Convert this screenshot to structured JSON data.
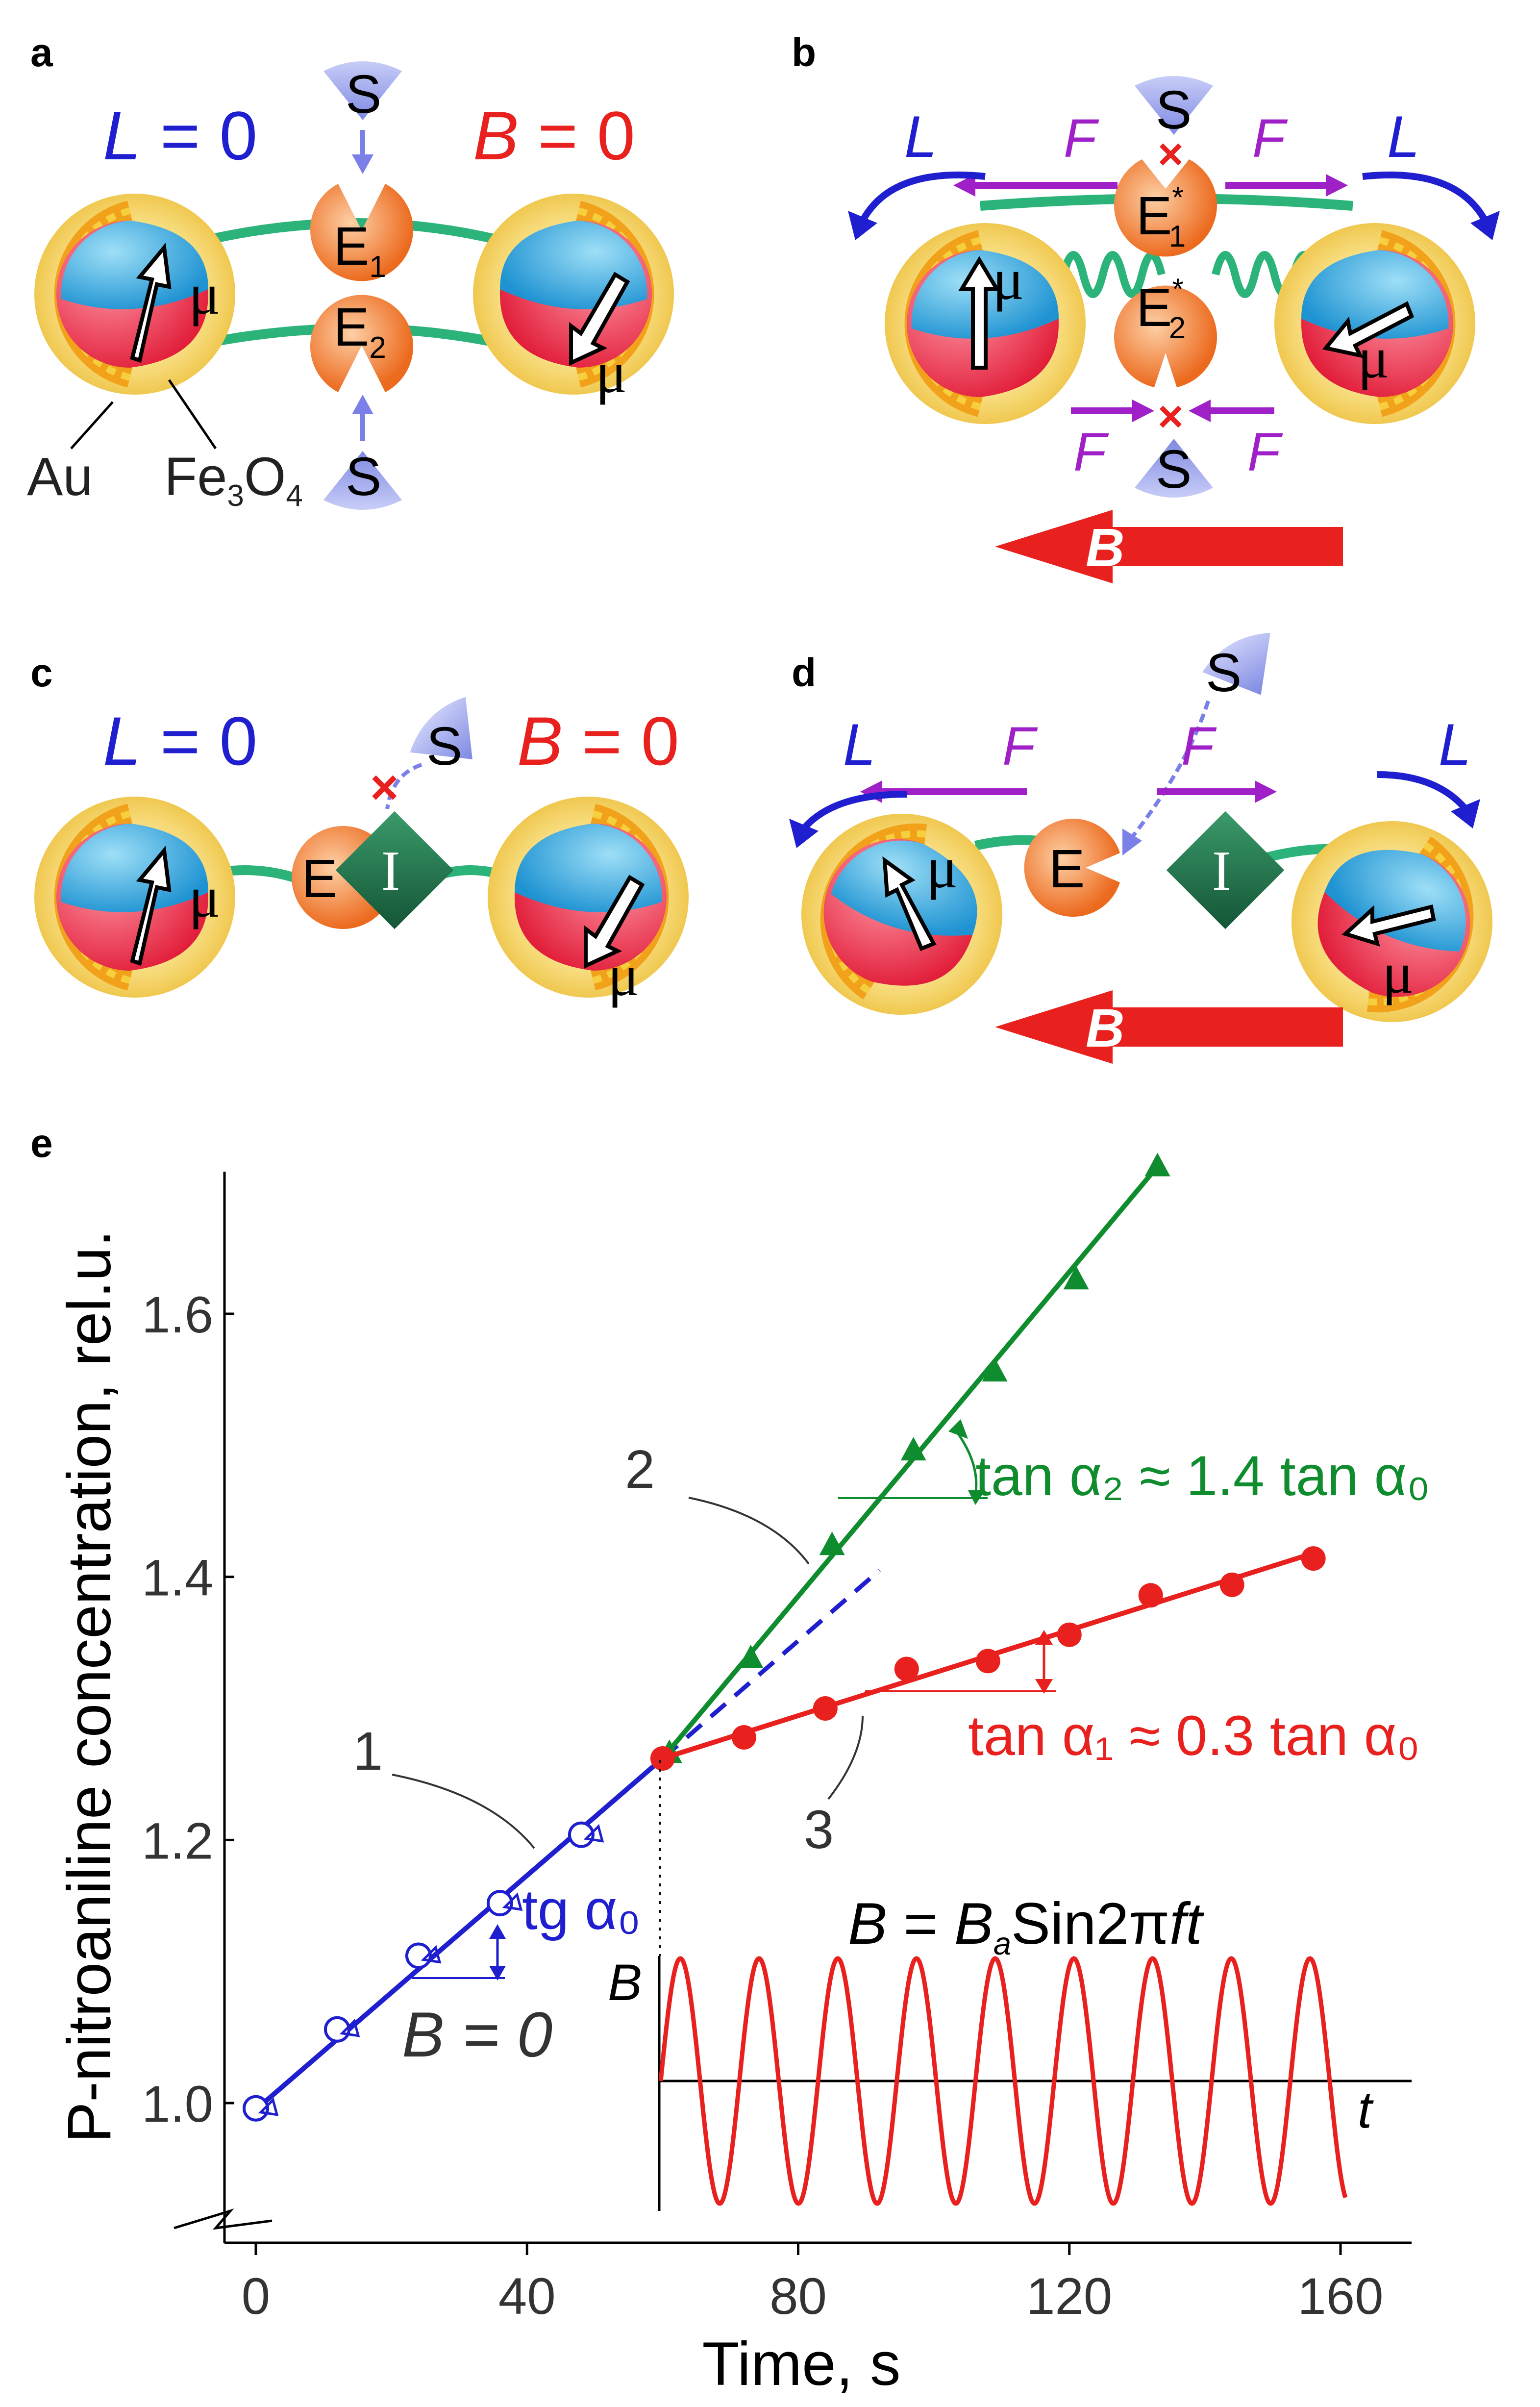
{
  "panels": {
    "a": {
      "label": "a",
      "L": "L",
      "L_eq": " = 0",
      "B": "B",
      "B_eq": " = 0",
      "S": "S",
      "E": "E",
      "sub1": "1",
      "sub2": "2",
      "mu": "μ",
      "au": "Au",
      "fe": "Fe",
      "fe3": "3",
      "o": "O",
      "o4": "4"
    },
    "b": {
      "label": "b",
      "L": "L",
      "F": "F",
      "S": "S",
      "E": "E",
      "star": "*",
      "sub1": "1",
      "sub2": "2",
      "mu": "μ",
      "B": "B",
      "cross": "×"
    },
    "c": {
      "label": "c",
      "L": "L",
      "L_eq": " = 0",
      "B": "B",
      "B_eq": " = 0",
      "S": "S",
      "E": "E",
      "I": "I",
      "mu": "μ",
      "cross": "×"
    },
    "d": {
      "label": "d",
      "L": "L",
      "F": "F",
      "S": "S",
      "E": "E",
      "I": "I",
      "mu": "μ",
      "B": "B"
    }
  },
  "chart_data": {
    "label": "e",
    "type": "scatter",
    "xlabel": "Time, s",
    "ylabel": "P-nitroaniline concentration, rel.u.",
    "xlim": [
      -5,
      170
    ],
    "ylim": [
      0.92,
      1.72
    ],
    "xticks": [
      0,
      40,
      80,
      120,
      160
    ],
    "xtick_labels": [
      "0",
      "40",
      "80",
      "120",
      "160"
    ],
    "yticks": [
      1.0,
      1.2,
      1.4,
      1.6
    ],
    "ytick_labels": [
      "1.0",
      "1.2",
      "1.4",
      "1.6"
    ],
    "series": [
      {
        "name": "1",
        "label": "1",
        "color": "#1f1fd0",
        "marker": "open-circle",
        "x": [
          0,
          12,
          24,
          36,
          48
        ],
        "y": [
          0.996,
          1.056,
          1.112,
          1.152,
          1.204
        ],
        "fit": {
          "x": [
            0,
            60
          ],
          "y": [
            0.995,
            1.262
          ]
        }
      },
      {
        "name": "2",
        "label": "2",
        "color": "#0e8c2e",
        "marker": "filled-triangle",
        "x": [
          61,
          73,
          85,
          97,
          109,
          121,
          133
        ],
        "y": [
          1.266,
          1.338,
          1.424,
          1.496,
          1.556,
          1.626,
          1.712
        ],
        "fit": {
          "x": [
            60,
            133
          ],
          "y": [
            1.262,
            1.712
          ]
        }
      },
      {
        "name": "3",
        "label": "3",
        "color": "#e8201e",
        "marker": "filled-circle",
        "x": [
          60,
          72,
          84,
          96,
          108,
          120,
          132,
          144,
          156
        ],
        "y": [
          1.262,
          1.278,
          1.3,
          1.33,
          1.336,
          1.356,
          1.386,
          1.394,
          1.414
        ],
        "fit": {
          "x": [
            60,
            156
          ],
          "y": [
            1.262,
            1.418
          ]
        }
      }
    ],
    "extrapolation": {
      "x": [
        60,
        92
      ],
      "y": [
        1.262,
        1.405
      ],
      "color": "#1f1fd0"
    },
    "annotations": {
      "tan2": "tan α₂ ≈ 1.4 tan α₀",
      "tan1": "tan α₁ ≈ 0.3 tan α₀",
      "tg0": "tg α₀",
      "b_zero": "B = 0"
    },
    "inset": {
      "title_B": "B",
      "title_eq": " = ",
      "title_Ba": "B",
      "title_a": "a",
      "title_rest": "Sin2π",
      "title_ft": "ft",
      "y_label": "B",
      "x_label": "t",
      "cycles": 8.7
    }
  },
  "colors": {
    "blue": "#1f1fd0",
    "red": "#e8201e",
    "green": "#0e8c2e",
    "magenta": "#a020c8",
    "enzyme": "#f07a2a",
    "substrate": "#9aa6ee",
    "inhibitor": "#1d6b45",
    "gold": "#f6d66e",
    "rim": "#f3a81b",
    "fe_blue": "#2aa3dd",
    "fe_red": "#e8253f"
  }
}
